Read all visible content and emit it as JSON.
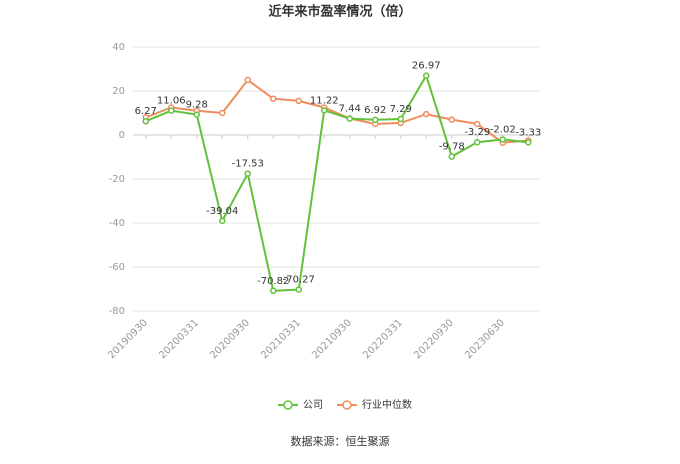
{
  "chart_data": {
    "type": "line",
    "title": "近年来市盈率情况（倍）",
    "categories": [
      "20190930",
      null,
      "20200331",
      null,
      "20200930",
      null,
      "20210331",
      null,
      "20210930",
      null,
      "20220331",
      null,
      "20220930",
      null,
      "20230630",
      null
    ],
    "series": [
      {
        "name": "公司",
        "color": "#62c13a",
        "values": [
          6.27,
          11.06,
          9.28,
          -39.04,
          -17.53,
          -70.82,
          -70.27,
          11.22,
          7.44,
          6.92,
          7.29,
          26.97,
          -9.78,
          -3.29,
          -2.02,
          -3.33
        ]
      },
      {
        "name": "行业中位数",
        "color": "#f08c5e",
        "values": [
          8,
          12.5,
          11,
          10,
          25,
          16.5,
          15.5,
          12.5,
          7.5,
          5,
          5.5,
          9.5,
          7,
          5,
          -3.5,
          -2.5
        ]
      }
    ],
    "ylim": [
      -80,
      40
    ],
    "yticks": [
      -80,
      -60,
      -40,
      -20,
      0,
      20,
      40
    ],
    "grid": true,
    "source": "数据来源：恒生聚源"
  }
}
